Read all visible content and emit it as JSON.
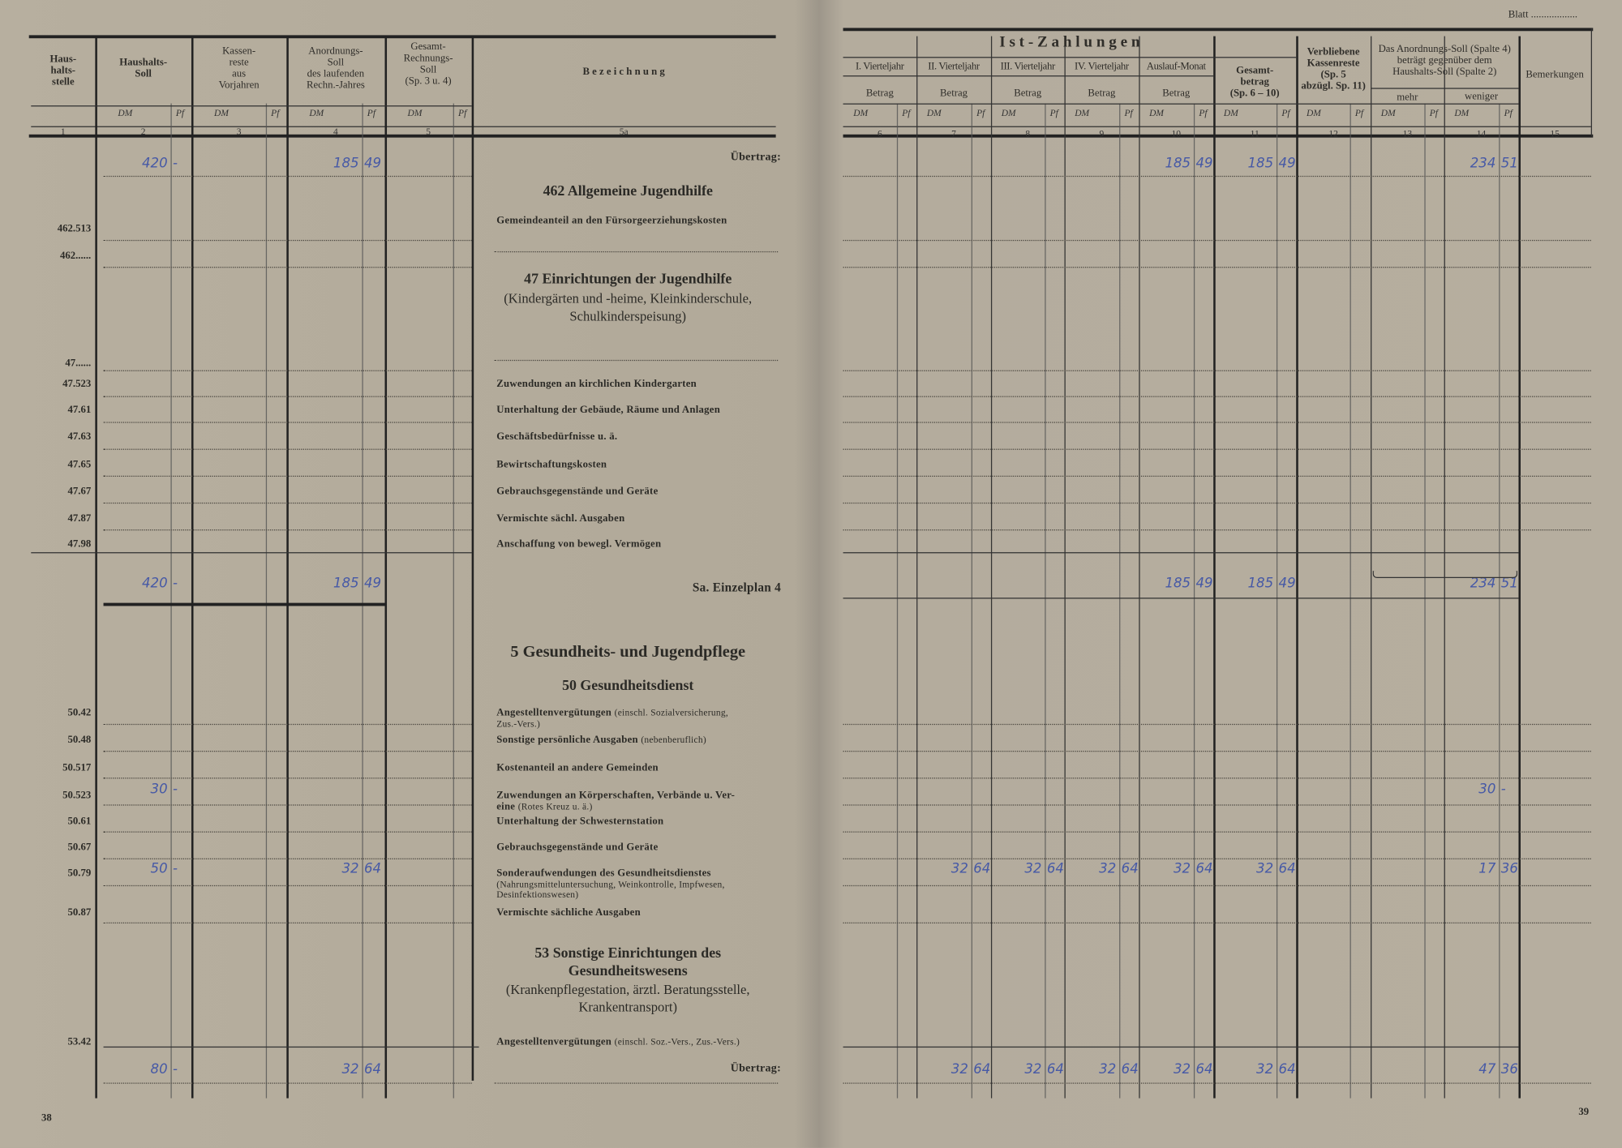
{
  "header_right_blatt": "Blatt ..................",
  "left_headers": {
    "col1": "Haus-\nhalts-\nstelle",
    "col2": "Haushalts-\nSoll",
    "col3": "Kassen-\nreste\naus\nVorjahren",
    "col4": "Anordnungs-\nSoll\ndes laufenden\nRechn.-Jahres",
    "col5": "Gesamt-\nRechnungs-\nSoll\n(Sp. 3 u. 4)",
    "col5a": "B e z e i c h n u n g",
    "dm": "DM",
    "pf": "Pf",
    "numbers": [
      "1",
      "2",
      "3",
      "4",
      "5",
      "5a"
    ]
  },
  "right_headers": {
    "group": "I s t - Z a h l u n g e n",
    "q1": "I. Vierteljahr",
    "q2": "II. Vierteljahr",
    "q3": "III. Vierteljahr",
    "q4": "IV. Vierteljahr",
    "auslauf": "Auslauf-Monat",
    "betrag": "Betrag",
    "gesamt": "Gesamt-\nbetrag\n(Sp. 6 – 10)",
    "verblieben": "Verbliebene\nKassenreste\n(Sp. 5\nabzügl. Sp. 11)",
    "anordnung": "Das Anordnungs-Soll (Spalte 4)\nbeträgt gegenüber dem\nHaushalts-Soll (Spalte 2)",
    "mehr": "mehr",
    "weniger": "weniger",
    "bemerkungen": "Bemerkungen",
    "dm": "DM",
    "pf": "Pf",
    "numbers": [
      "6",
      "7",
      "8",
      "9",
      "10",
      "11",
      "12",
      "13",
      "14",
      "15"
    ]
  },
  "rows": [
    {
      "type": "total",
      "desc": "Übertrag:",
      "left": [
        {
          "col": 2,
          "dm": "420",
          "pf": "-"
        },
        {
          "col": 4,
          "dm": "185",
          "pf": "49"
        }
      ],
      "right": [
        {
          "col": 10,
          "dm": "185",
          "pf": "49"
        },
        {
          "col": 11,
          "dm": "185",
          "pf": "49"
        },
        {
          "col": 14,
          "dm": "234",
          "pf": "51"
        }
      ]
    },
    {
      "type": "heading",
      "desc": "462 Allgemeine Jugendhilfe"
    },
    {
      "type": "item",
      "code": "462.513",
      "desc": "Gemeindeanteil an den Fürsorgeerziehungskosten"
    },
    {
      "type": "item",
      "code": "462......",
      "desc": ""
    },
    {
      "type": "heading",
      "desc": "47 Einrichtungen der Jugendhilfe",
      "sub": "(Kindergärten und -heime, Kleinkinderschule,\nSchulkinderspeisung)"
    },
    {
      "type": "item",
      "code": "47......",
      "desc": ""
    },
    {
      "type": "item",
      "code": "47.523",
      "desc": "Zuwendungen an kirchlichen Kindergarten"
    },
    {
      "type": "item",
      "code": "47.61",
      "desc": "Unterhaltung der Gebäude, Räume und Anlagen"
    },
    {
      "type": "item",
      "code": "47.63",
      "desc": "Geschäftsbedürfnisse u. ä."
    },
    {
      "type": "item",
      "code": "47.65",
      "desc": "Bewirtschaftungskosten"
    },
    {
      "type": "item",
      "code": "47.67",
      "desc": "Gebrauchsgegenstände und Geräte"
    },
    {
      "type": "item",
      "code": "47.87",
      "desc": "Vermischte sächl. Ausgaben"
    },
    {
      "type": "item",
      "code": "47.98",
      "desc": "Anschaffung von bewegl. Vermögen"
    },
    {
      "type": "total",
      "desc": "Sa. Einzelplan 4",
      "left": [
        {
          "col": 2,
          "dm": "420",
          "pf": "-"
        },
        {
          "col": 4,
          "dm": "185",
          "pf": "49"
        }
      ],
      "right": [
        {
          "col": 10,
          "dm": "185",
          "pf": "49"
        },
        {
          "col": 11,
          "dm": "185",
          "pf": "49"
        },
        {
          "col": 14,
          "dm": "234",
          "pf": "51"
        }
      ]
    },
    {
      "type": "heading",
      "desc": "5 Gesundheits- und Jugendpflege"
    },
    {
      "type": "heading",
      "desc": "50 Gesundheitsdienst"
    },
    {
      "type": "item",
      "code": "50.42",
      "desc": "Angestelltenvergütungen",
      "note": "(einschl. Sozialversicherung,\nZus.-Vers.)"
    },
    {
      "type": "item",
      "code": "50.48",
      "desc": "Sonstige persönliche Ausgaben",
      "note": "(nebenberuflich)"
    },
    {
      "type": "item",
      "code": "50.517",
      "desc": "Kostenanteil an andere Gemeinden"
    },
    {
      "type": "item",
      "code": "50.523",
      "desc": "Zuwendungen an Körperschaften, Verbände u. Ver-\neine",
      "note": "(Rotes Kreuz u. ä.)",
      "left": [
        {
          "col": 2,
          "dm": "30",
          "pf": "-"
        }
      ],
      "right": [
        {
          "col": 14,
          "dm": "30",
          "pf": "-"
        }
      ]
    },
    {
      "type": "item",
      "code": "50.61",
      "desc": "Unterhaltung der Schwesternstation"
    },
    {
      "type": "item",
      "code": "50.67",
      "desc": "Gebrauchsgegenstände und Geräte"
    },
    {
      "type": "item",
      "code": "50.79",
      "desc": "Sonderaufwendungen des Gesundheitsdienstes",
      "note": "(Nahrungsmitteluntersuchung, Weinkontrolle, Impfwesen,\nDesinfektionswesen)",
      "left": [
        {
          "col": 2,
          "dm": "50",
          "pf": "-"
        },
        {
          "col": 4,
          "dm": "32",
          "pf": "64"
        }
      ],
      "right": [
        {
          "col": 7,
          "dm": "32",
          "pf": "64"
        },
        {
          "col": 8,
          "dm": "32",
          "pf": "64"
        },
        {
          "col": 9,
          "dm": "32",
          "pf": "64"
        },
        {
          "col": 10,
          "dm": "32",
          "pf": "64"
        },
        {
          "col": 11,
          "dm": "32",
          "pf": "64"
        },
        {
          "col": 14,
          "dm": "17",
          "pf": "36"
        }
      ]
    },
    {
      "type": "item",
      "code": "50.87",
      "desc": "Vermischte sächliche Ausgaben"
    },
    {
      "type": "heading",
      "desc": "53 Sonstige Einrichtungen des\nGesundheitswesens",
      "sub": "(Krankenpflegestation, ärztl. Beratungsstelle,\nKrankentransport)"
    },
    {
      "type": "item",
      "code": "53.42",
      "desc": "Angestelltenvergütungen",
      "note": "(einschl. Soz.-Vers., Zus.-Vers.)"
    },
    {
      "type": "total",
      "desc": "Übertrag:",
      "left": [
        {
          "col": 2,
          "dm": "80",
          "pf": "-"
        },
        {
          "col": 4,
          "dm": "32",
          "pf": "64"
        }
      ],
      "right": [
        {
          "col": 7,
          "dm": "32",
          "pf": "64"
        },
        {
          "col": 8,
          "dm": "32",
          "pf": "64"
        },
        {
          "col": 9,
          "dm": "32",
          "pf": "64"
        },
        {
          "col": 10,
          "dm": "32",
          "pf": "64"
        },
        {
          "col": 11,
          "dm": "32",
          "pf": "64"
        },
        {
          "col": 14,
          "dm": "47",
          "pf": "36"
        }
      ]
    }
  ],
  "page_left": "38",
  "page_right": "39",
  "colors": {
    "ink": "#4659a6",
    "paper": "#b6ae9f",
    "print": "#2b2a26"
  }
}
